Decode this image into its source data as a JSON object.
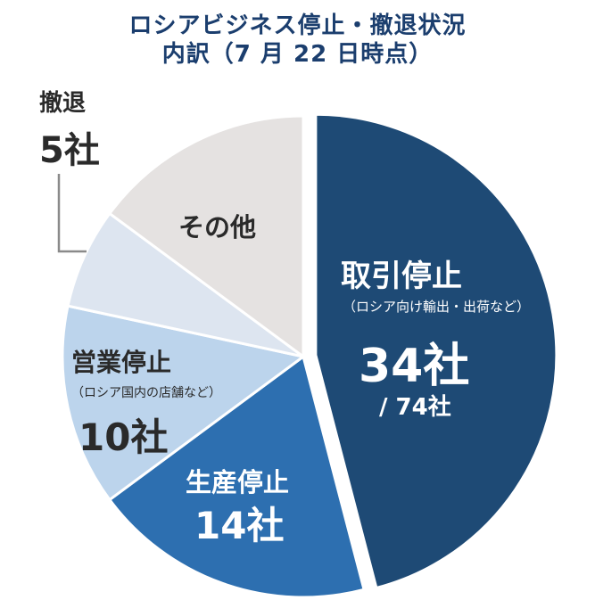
{
  "title_line1": "ロシアビジネス停止・撤退状況",
  "title_line2": "内訳（7 月 22 日時点）",
  "total_label": "/ 74社",
  "chart_data": {
    "type": "pie",
    "total": 74,
    "unit": "社",
    "slices": [
      {
        "label": "取引停止",
        "note": "（ロシア向け輸出・出荷など）",
        "value": 34,
        "value_label": "34社",
        "color": "#1e4a75"
      },
      {
        "label": "生産停止",
        "note": "",
        "value": 14,
        "value_label": "14社",
        "color": "#2d6fb0"
      },
      {
        "label": "営業停止",
        "note": "（ロシア国内の店舗など）",
        "value": 10,
        "value_label": "10社",
        "color": "#bcd4ec"
      },
      {
        "label": "撤退",
        "note": "",
        "value": 5,
        "value_label": "5社",
        "color": "#dde5f0"
      },
      {
        "label": "その他",
        "note": "",
        "value": 11,
        "value_label": "",
        "color": "#e5e2e1"
      }
    ]
  }
}
